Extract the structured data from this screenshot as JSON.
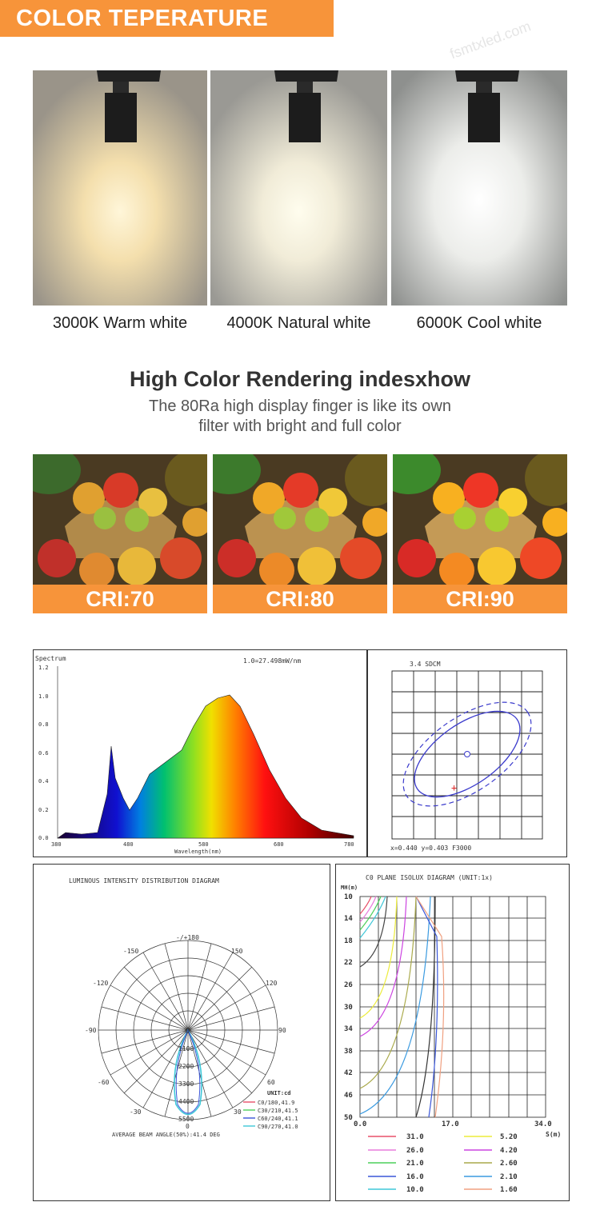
{
  "header": {
    "title": "COLOR TEPERATURE"
  },
  "temperatures": [
    {
      "label": "3000K Warm white",
      "color": "#fff1cf"
    },
    {
      "label": "4000K Natural white",
      "color": "#fffbe6"
    },
    {
      "label": "6000K Cool white",
      "color": "#ffffff"
    }
  ],
  "cri_section": {
    "title": "High Color Rendering indesxhow",
    "subtitle_line1": "The 80Ra high display finger is like its own",
    "subtitle_line2": "filter with bright and full color",
    "items": [
      {
        "label": "CRI:70"
      },
      {
        "label": "CRI:80"
      },
      {
        "label": "CRI:90"
      }
    ]
  },
  "spectrum": {
    "title": "Spectrum",
    "scale_note": "1.0=27.498mW/nm",
    "xlabel": "Wavelength(nm)",
    "y_ticks": [
      "1.2",
      "1.0",
      "0.8",
      "0.6",
      "0.4",
      "0.2",
      "0.0"
    ],
    "x_ticks": [
      "380",
      "480",
      "580",
      "680",
      "780"
    ]
  },
  "sdcm": {
    "title": "3.4 SDCM",
    "readout": "x=0.440 y=0.403 F3000"
  },
  "polar": {
    "title": "LUMINOUS INTENSITY DISTRIBUTION DIAGRAM",
    "angle_labels": [
      "-/+180",
      "-150",
      "150",
      "-120",
      "120",
      "-90",
      "90",
      "-60",
      "60",
      "-30",
      "30",
      "0",
      "0"
    ],
    "radial_labels": [
      "1100",
      "2200",
      "3300",
      "4400",
      "5500"
    ],
    "unit": "UNIT:cd",
    "legend": [
      {
        "label": "C0/180,41.9",
        "color": "#e8506a"
      },
      {
        "label": "C30/210,41.5",
        "color": "#4ccf5a"
      },
      {
        "label": "C60/240,41.1",
        "color": "#3a56d8"
      },
      {
        "label": "C90/270,41.0",
        "color": "#3ec7d8"
      }
    ],
    "footer": "AVERAGE BEAM ANGLE(50%):41.4 DEG"
  },
  "isolux": {
    "title": "C0 PLANE ISOLUX DIAGRAM (UNIT:1x)",
    "y_title": "MH(m)",
    "y_ticks": [
      "10",
      "14",
      "18",
      "22",
      "26",
      "30",
      "34",
      "38",
      "42",
      "46",
      "50"
    ],
    "x_ticks": [
      "0.0",
      "17.0",
      "34.0"
    ],
    "x_title": "S(m)",
    "legend": [
      {
        "value": "31.0",
        "color": "#e8506a"
      },
      {
        "value": "5.20",
        "color": "#ecec3a"
      },
      {
        "value": "26.0",
        "color": "#e87cdc"
      },
      {
        "value": "4.20",
        "color": "#cc44e0"
      },
      {
        "value": "21.0",
        "color": "#4ccf5a"
      },
      {
        "value": "2.60",
        "color": "#a9a94a"
      },
      {
        "value": "16.0",
        "color": "#3a56d8"
      },
      {
        "value": "2.10",
        "color": "#3a9ae0"
      },
      {
        "value": "10.0",
        "color": "#3ec7d8"
      },
      {
        "value": "1.60",
        "color": "#f0a080"
      }
    ]
  },
  "watermark": "fsmtxled.com"
}
